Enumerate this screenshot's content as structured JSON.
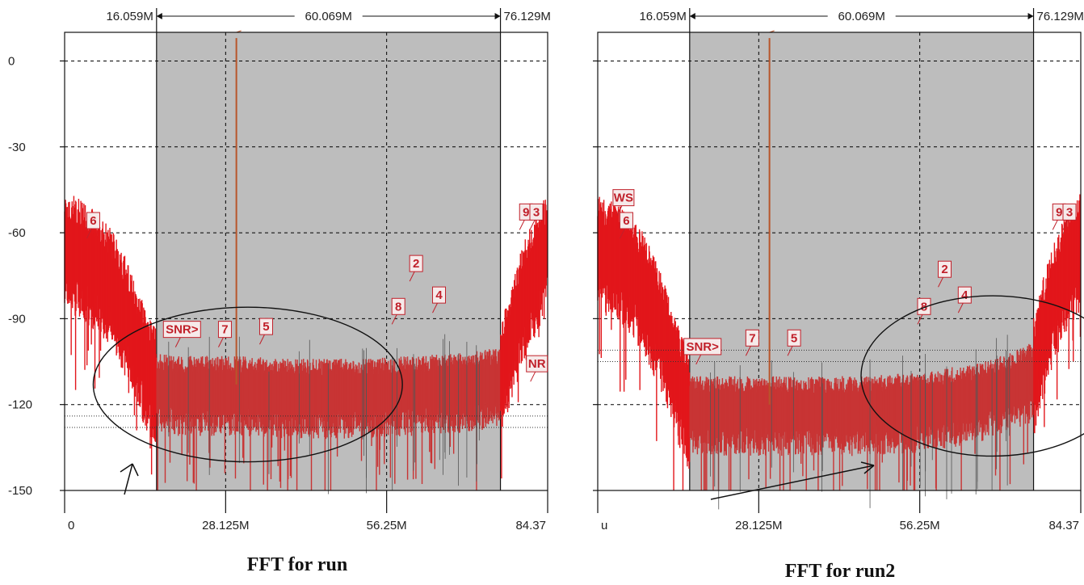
{
  "colors": {
    "signal": "#e2161b",
    "floor": "#c83434",
    "shade": "#bdbdbd",
    "marker": "#c0202a",
    "grid": "#000000"
  },
  "chart_data": [
    {
      "type": "line",
      "title": "FFT for run",
      "xlabel": "",
      "ylabel": "",
      "xlim": [
        0,
        84.375
      ],
      "ylim": [
        -150,
        10
      ],
      "x_tick_labels": [
        "0",
        "28.125M",
        "56.25M",
        "84.37"
      ],
      "x_tick_values": [
        0,
        28.125,
        56.25,
        84.375
      ],
      "y_tick_labels": [
        "0",
        "-30",
        "-60",
        "-90",
        "-120",
        "-150"
      ],
      "y_tick_values": [
        0,
        -30,
        -60,
        -90,
        -120,
        -150
      ],
      "grid": true,
      "band": {
        "start_label": "16.059M",
        "width_label": "60.069M",
        "end_label": "76.129M",
        "start": 16.059,
        "end": 76.129
      },
      "noise_floor": [
        {
          "x": 0,
          "y": -63
        },
        {
          "x": 4,
          "y": -68
        },
        {
          "x": 8,
          "y": -76
        },
        {
          "x": 11,
          "y": -88
        },
        {
          "x": 14,
          "y": -104
        },
        {
          "x": 16.1,
          "y": -112
        },
        {
          "x": 20,
          "y": -113
        },
        {
          "x": 30,
          "y": -113
        },
        {
          "x": 40,
          "y": -114
        },
        {
          "x": 50,
          "y": -114
        },
        {
          "x": 60,
          "y": -113
        },
        {
          "x": 70,
          "y": -112
        },
        {
          "x": 76.1,
          "y": -110
        },
        {
          "x": 78,
          "y": -96
        },
        {
          "x": 80,
          "y": -82
        },
        {
          "x": 82,
          "y": -72
        },
        {
          "x": 84.375,
          "y": -64
        }
      ],
      "spur_x": 30.0,
      "spur_y": 8,
      "hlines": [
        -124,
        -128
      ],
      "markers": [
        {
          "label": "6",
          "x": 5,
          "y": -58
        },
        {
          "label": "9",
          "x": 80.6,
          "y": -55
        },
        {
          "label": "3",
          "x": 82.4,
          "y": -55
        },
        {
          "label": "2",
          "x": 61.4,
          "y": -73
        },
        {
          "label": "8",
          "x": 58.3,
          "y": -88
        },
        {
          "label": "4",
          "x": 65.4,
          "y": -84
        },
        {
          "label": "7",
          "x": 28,
          "y": -96
        },
        {
          "label": "5",
          "x": 35.2,
          "y": -95
        },
        {
          "label": "SNR>",
          "x": 20.5,
          "y": -96
        },
        {
          "label": "NR",
          "x": 82.5,
          "y": -108
        }
      ],
      "ellipse": {
        "cx": 32,
        "cy": -113,
        "rx": 27,
        "ry": 27
      }
    },
    {
      "type": "line",
      "title": "FFT for run2",
      "xlabel": "",
      "ylabel": "",
      "xlim": [
        0,
        84.375
      ],
      "ylim": [
        -150,
        10
      ],
      "x_tick_labels": [
        "u",
        "28.125M",
        "56.25M",
        "84.37"
      ],
      "x_tick_values": [
        0,
        28.125,
        56.25,
        84.375
      ],
      "y_tick_labels": [
        "0",
        "-30",
        "-60",
        "-90",
        "-120",
        "-150"
      ],
      "y_tick_values": [
        0,
        -30,
        -60,
        -90,
        -120,
        -150
      ],
      "grid": true,
      "band": {
        "start_label": "16.059M",
        "width_label": "60.069M",
        "end_label": "76.129M",
        "start": 16.059,
        "end": 76.129
      },
      "noise_floor": [
        {
          "x": 0,
          "y": -65
        },
        {
          "x": 4,
          "y": -68
        },
        {
          "x": 8,
          "y": -78
        },
        {
          "x": 11,
          "y": -92
        },
        {
          "x": 14,
          "y": -110
        },
        {
          "x": 16.1,
          "y": -120
        },
        {
          "x": 25,
          "y": -120
        },
        {
          "x": 35,
          "y": -120
        },
        {
          "x": 45,
          "y": -120
        },
        {
          "x": 55,
          "y": -119
        },
        {
          "x": 65,
          "y": -116
        },
        {
          "x": 72,
          "y": -112
        },
        {
          "x": 76.1,
          "y": -108
        },
        {
          "x": 78,
          "y": -92
        },
        {
          "x": 80,
          "y": -80
        },
        {
          "x": 82,
          "y": -70
        },
        {
          "x": 84.375,
          "y": -63
        }
      ],
      "spur_x": 30.0,
      "spur_y": 8,
      "hlines": [
        -101,
        -105
      ],
      "markers": [
        {
          "label": "WS",
          "x": 4.5,
          "y": -50
        },
        {
          "label": "6",
          "x": 5,
          "y": -58
        },
        {
          "label": "9",
          "x": 80.6,
          "y": -55
        },
        {
          "label": "3",
          "x": 82.4,
          "y": -55
        },
        {
          "label": "2",
          "x": 60.6,
          "y": -75
        },
        {
          "label": "8",
          "x": 57,
          "y": -88
        },
        {
          "label": "4",
          "x": 64.1,
          "y": -84
        },
        {
          "label": "7",
          "x": 27,
          "y": -99
        },
        {
          "label": "5",
          "x": 34.3,
          "y": -99
        },
        {
          "label": "SNR>",
          "x": 18.3,
          "y": -102
        }
      ],
      "ellipse": {
        "cx": 69,
        "cy": -110,
        "rx": 23,
        "ry": 28
      }
    }
  ]
}
